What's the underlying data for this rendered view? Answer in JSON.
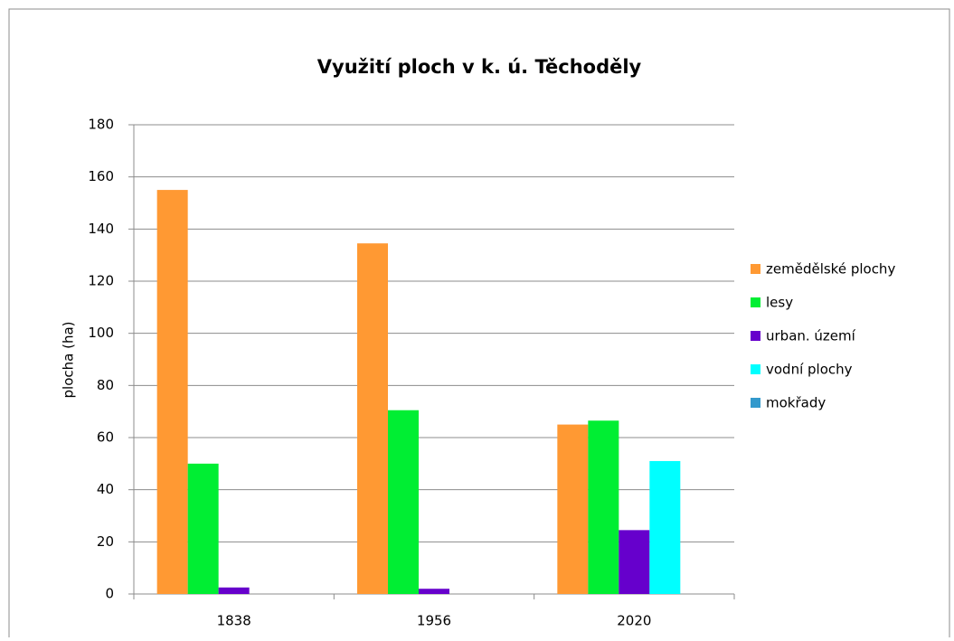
{
  "chart_data": {
    "type": "bar",
    "title": "Využití ploch v k. ú. Těchoděly",
    "y_label": "plocha (ha)",
    "categories": [
      "1838",
      "1956",
      "2020"
    ],
    "series": [
      {
        "name": "zemědělské plochy",
        "color": "#ff9933",
        "values": [
          155,
          134.5,
          65
        ]
      },
      {
        "name": "lesy",
        "color": "#00ee33",
        "values": [
          50,
          70.5,
          66.5
        ]
      },
      {
        "name": "urban. území",
        "color": "#6600cc",
        "values": [
          2.5,
          2,
          24.5
        ]
      },
      {
        "name": "vodní plochy",
        "color": "#00ffff",
        "values": [
          0,
          0,
          51
        ]
      },
      {
        "name": "mokřady",
        "color": "#3399cc",
        "values": [
          0,
          0,
          0
        ]
      }
    ],
    "ylim": [
      0,
      180
    ],
    "yticks": [
      0,
      20,
      40,
      60,
      80,
      100,
      120,
      140,
      160,
      180
    ],
    "grid": true,
    "legend": "right"
  }
}
